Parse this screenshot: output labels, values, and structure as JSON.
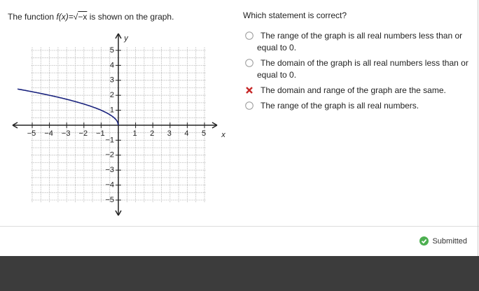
{
  "prompt": {
    "before": "The function",
    "func": "f(x)=",
    "radical": "√",
    "radicand": "−x",
    "after": "is shown on the graph."
  },
  "graph": {
    "x_label": "x",
    "y_label": "y",
    "x_ticks": [
      "−5",
      "−4",
      "−3",
      "−2",
      "−1",
      "1",
      "2",
      "3",
      "4",
      "5"
    ],
    "y_ticks": [
      "5",
      "4",
      "3",
      "2",
      "1",
      "−1",
      "−2",
      "−3",
      "−4",
      "−5"
    ]
  },
  "question": "Which statement is correct?",
  "options": [
    {
      "text": "The range of the graph is all real numbers less than or equal to 0.",
      "state": "unselected"
    },
    {
      "text": "The domain of the graph is all real numbers less than or equal to 0.",
      "state": "unselected"
    },
    {
      "text": "The domain and range of the graph are the same.",
      "state": "incorrect"
    },
    {
      "text": "The range of the graph is all real numbers.",
      "state": "unselected"
    }
  ],
  "status": "Submitted"
}
